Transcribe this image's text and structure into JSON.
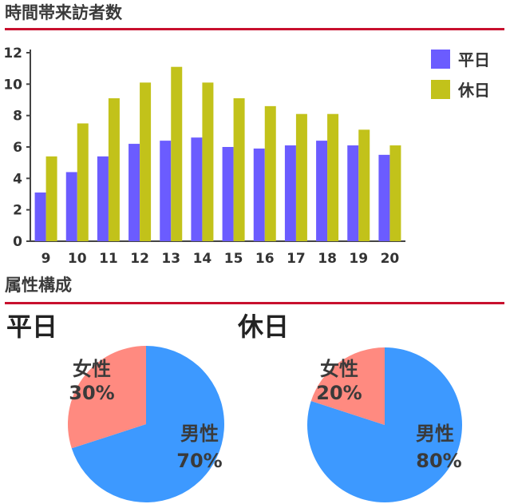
{
  "headings": {
    "visitors": "時間帯来訪者数",
    "attributes": "属性構成"
  },
  "colors": {
    "weekday": "#6b5cff",
    "holiday": "#c2c21a",
    "male": "#3d99ff",
    "female": "#ff8a80",
    "rule": "#c8102e"
  },
  "chart_data": [
    {
      "type": "bar",
      "title": "時間帯来訪者数",
      "categories": [
        "9",
        "10",
        "11",
        "12",
        "13",
        "14",
        "15",
        "16",
        "17",
        "18",
        "19",
        "20"
      ],
      "series": [
        {
          "name": "平日",
          "values": [
            3.1,
            4.4,
            5.4,
            6.2,
            6.4,
            6.6,
            6.0,
            5.9,
            6.1,
            6.4,
            6.1,
            5.5
          ]
        },
        {
          "name": "休日",
          "values": [
            5.4,
            7.5,
            9.1,
            10.1,
            11.1,
            10.1,
            9.1,
            8.6,
            8.1,
            8.1,
            7.1,
            6.1
          ]
        }
      ],
      "yticks": [
        "0",
        "2",
        "4",
        "6",
        "8",
        "10",
        "12"
      ],
      "ylim": [
        0,
        12
      ],
      "legend": "top-right",
      "grid": false
    },
    {
      "type": "pie",
      "title": "平日",
      "slices": [
        {
          "name": "男性",
          "value": 70,
          "label": "70%"
        },
        {
          "name": "女性",
          "value": 30,
          "label": "30%"
        }
      ]
    },
    {
      "type": "pie",
      "title": "休日",
      "slices": [
        {
          "name": "男性",
          "value": 80,
          "label": "80%"
        },
        {
          "name": "女性",
          "value": 20,
          "label": "20%"
        }
      ]
    }
  ]
}
